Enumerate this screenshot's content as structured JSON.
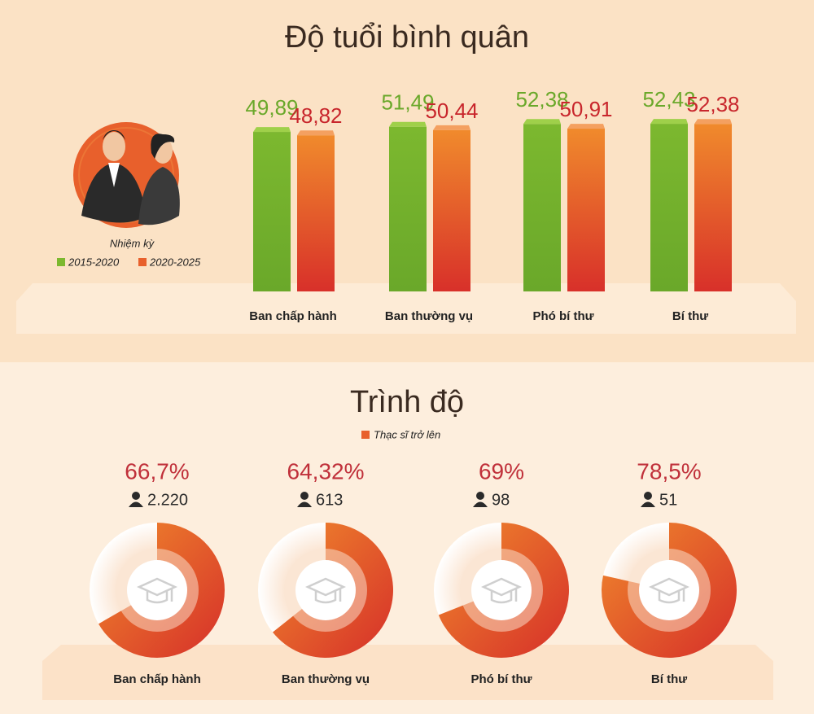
{
  "chart_data": [
    {
      "type": "bar",
      "title": "Độ tuổi bình quân",
      "legend_title": "Nhiệm kỳ",
      "categories": [
        "Ban chấp hành",
        "Ban thường vụ",
        "Phó bí thư",
        "Bí thư"
      ],
      "series": [
        {
          "name": "2015-2020",
          "color": "#7cb82f",
          "values": [
            49.89,
            51.49,
            52.38,
            52.43
          ],
          "value_labels": [
            "49,89",
            "51,49",
            "52,38",
            "52,43"
          ]
        },
        {
          "name": "2020-2025",
          "color": "#e8602c",
          "values": [
            48.82,
            50.44,
            50.91,
            52.38
          ],
          "value_labels": [
            "48,82",
            "50,44",
            "50,91",
            "52,38"
          ]
        }
      ],
      "ylim": [
        0,
        55
      ]
    },
    {
      "type": "donut",
      "title": "Trình độ",
      "legend": "Thạc sĩ trở lên",
      "color": "#e8602c",
      "categories": [
        "Ban chấp hành",
        "Ban thường vụ",
        "Phó bí thư",
        "Bí thư"
      ],
      "values": [
        66.7,
        64.32,
        69,
        78.5
      ],
      "value_labels": [
        "66,7%",
        "64,32%",
        "69%",
        "78,5%"
      ],
      "counts": [
        2220,
        613,
        98,
        51
      ],
      "count_labels": [
        "2.220",
        "613",
        "98",
        "51"
      ]
    }
  ]
}
